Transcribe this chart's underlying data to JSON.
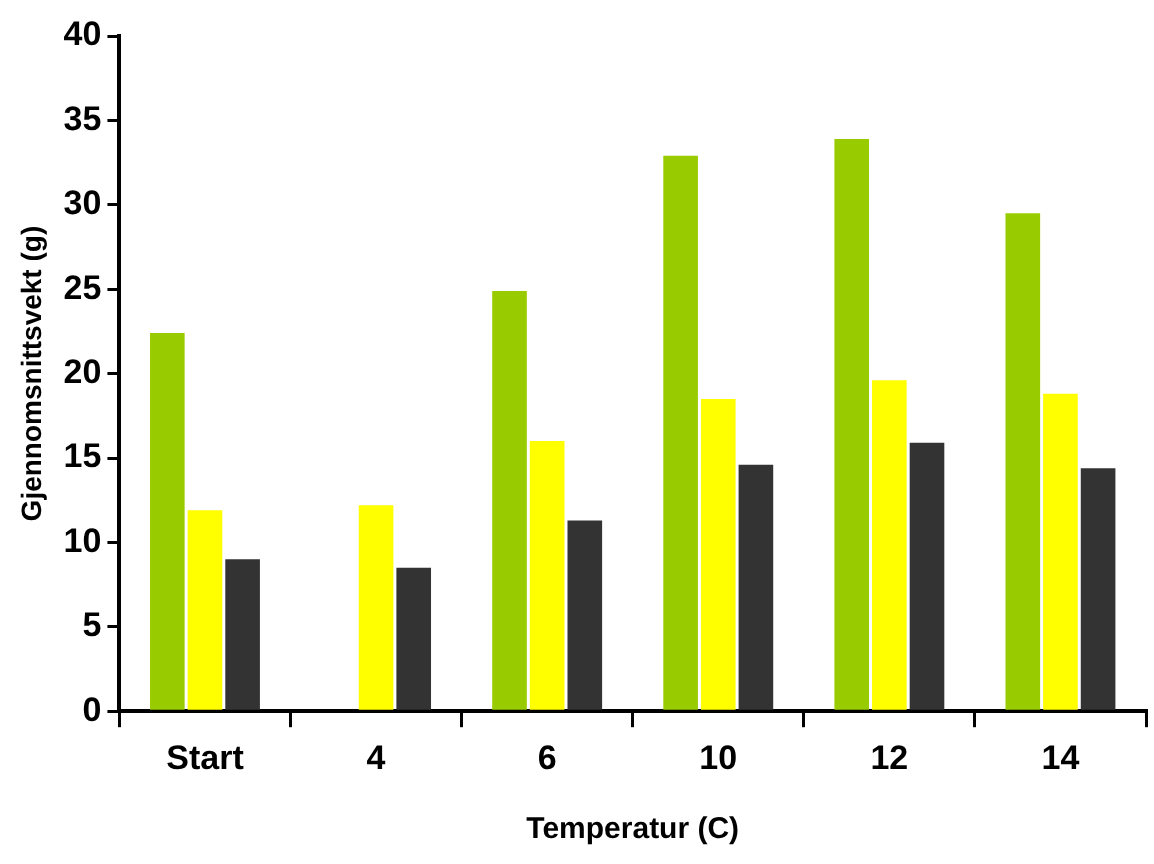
{
  "chart_data": {
    "type": "bar",
    "xlabel": "Temperatur (C)",
    "ylabel": "Gjennomsnittsvekt (g)",
    "categories": [
      "Start",
      "4",
      "6",
      "10",
      "12",
      "14"
    ],
    "series": [
      {
        "color": "#99cc00",
        "values": [
          22.4,
          null,
          24.9,
          32.9,
          33.9,
          29.5
        ]
      },
      {
        "color": "#ffff00",
        "values": [
          11.9,
          12.2,
          16.0,
          18.5,
          19.6,
          18.8
        ]
      },
      {
        "color": "#333333",
        "values": [
          9.0,
          8.5,
          11.3,
          14.6,
          15.9,
          14.4
        ]
      }
    ],
    "ylim": [
      0,
      40
    ],
    "yticks": [
      0,
      5,
      10,
      15,
      20,
      25,
      30,
      35,
      40
    ],
    "grid": false,
    "legend": false
  }
}
